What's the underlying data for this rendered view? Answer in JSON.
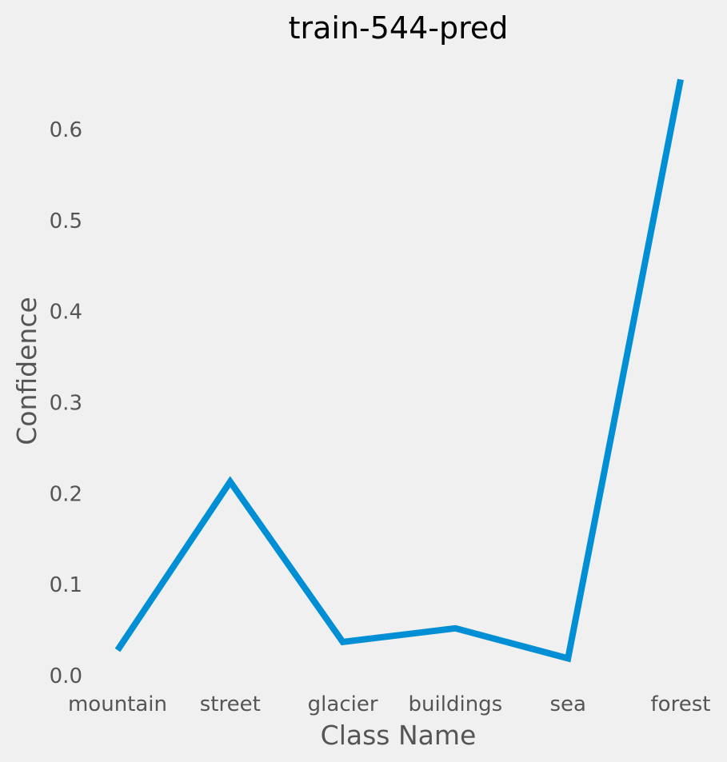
{
  "chart_data": {
    "type": "line",
    "title": "train-544-pred",
    "xlabel": "Class Name",
    "ylabel": "Confidence",
    "categories": [
      "mountain",
      "street",
      "glacier",
      "buildings",
      "sea",
      "forest"
    ],
    "series": [
      {
        "values": [
          0.028,
          0.213,
          0.037,
          0.052,
          0.019,
          0.655
        ]
      }
    ],
    "yticks": [
      "0.0",
      "0.1",
      "0.2",
      "0.3",
      "0.4",
      "0.5",
      "0.6"
    ],
    "ylim": [
      0.0,
      0.6
    ],
    "grid": false,
    "legend": "none",
    "colors": {
      "background": "#f0f0f0",
      "line": "#008fd5",
      "text": "#555555",
      "title": "#000000"
    }
  }
}
